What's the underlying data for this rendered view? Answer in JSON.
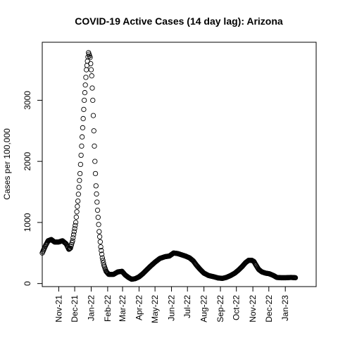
{
  "chart_data": {
    "type": "scatter",
    "title": "COVID-19 Active Cases (14 day lag): Arizona",
    "xlabel": "",
    "ylabel": "Cases per 100,000",
    "x_axis": {
      "type": "date",
      "range": [
        "2021-10-01",
        "2023-02-28"
      ],
      "ticks": [
        {
          "date": "2021-11-01",
          "label": "Nov-21"
        },
        {
          "date": "2021-12-01",
          "label": "Dec-21"
        },
        {
          "date": "2022-01-01",
          "label": "Jan-22"
        },
        {
          "date": "2022-02-01",
          "label": "Feb-22"
        },
        {
          "date": "2022-03-01",
          "label": "Mar-22"
        },
        {
          "date": "2022-04-01",
          "label": "Apr-22"
        },
        {
          "date": "2022-05-01",
          "label": "May-22"
        },
        {
          "date": "2022-06-01",
          "label": "Jun-22"
        },
        {
          "date": "2022-07-01",
          "label": "Jul-22"
        },
        {
          "date": "2022-08-01",
          "label": "Aug-22"
        },
        {
          "date": "2022-09-01",
          "label": "Sep-22"
        },
        {
          "date": "2022-10-01",
          "label": "Oct-22"
        },
        {
          "date": "2022-11-01",
          "label": "Nov-22"
        },
        {
          "date": "2022-12-01",
          "label": "Dec-22"
        },
        {
          "date": "2023-01-01",
          "label": "Jan-23"
        }
      ]
    },
    "y_axis": {
      "range": [
        -50,
        3950
      ],
      "ticks": [
        {
          "value": 0,
          "label": "0"
        },
        {
          "value": 1000,
          "label": "1000"
        },
        {
          "value": 2000,
          "label": "2000"
        },
        {
          "value": 3000,
          "label": "3000"
        }
      ]
    },
    "grid": false,
    "legend": "none",
    "marker": "open-circle",
    "series": [
      {
        "key_points": [
          [
            "2021-10-01",
            500
          ],
          [
            "2021-10-06",
            600
          ],
          [
            "2021-10-12",
            700
          ],
          [
            "2021-10-18",
            720
          ],
          [
            "2021-10-24",
            680
          ],
          [
            "2021-11-01",
            680
          ],
          [
            "2021-11-08",
            700
          ],
          [
            "2021-11-15",
            650
          ],
          [
            "2021-11-20",
            560
          ],
          [
            "2021-11-23",
            580
          ],
          [
            "2021-11-27",
            700
          ],
          [
            "2021-11-29",
            800
          ],
          [
            "2021-12-03",
            1000
          ],
          [
            "2021-12-07",
            1350
          ],
          [
            "2021-12-11",
            1800
          ],
          [
            "2021-12-15",
            2400
          ],
          [
            "2021-12-19",
            3000
          ],
          [
            "2021-12-23",
            3500
          ],
          [
            "2021-12-27",
            3780
          ],
          [
            "2021-12-30",
            3700
          ],
          [
            "2022-01-02",
            3400
          ],
          [
            "2022-01-04",
            3000
          ],
          [
            "2022-01-06",
            2500
          ],
          [
            "2022-01-08",
            2000
          ],
          [
            "2022-01-10",
            1600
          ],
          [
            "2022-01-13",
            1200
          ],
          [
            "2022-01-16",
            850
          ],
          [
            "2022-01-19",
            600
          ],
          [
            "2022-01-22",
            420
          ],
          [
            "2022-01-25",
            300
          ],
          [
            "2022-01-29",
            200
          ],
          [
            "2022-02-03",
            150
          ],
          [
            "2022-02-12",
            150
          ],
          [
            "2022-02-20",
            190
          ],
          [
            "2022-02-28",
            200
          ],
          [
            "2022-03-06",
            140
          ],
          [
            "2022-03-12",
            100
          ],
          [
            "2022-03-18",
            70
          ],
          [
            "2022-03-25",
            80
          ],
          [
            "2022-04-01",
            110
          ],
          [
            "2022-04-08",
            160
          ],
          [
            "2022-04-15",
            220
          ],
          [
            "2022-04-22",
            280
          ],
          [
            "2022-05-01",
            350
          ],
          [
            "2022-05-10",
            410
          ],
          [
            "2022-05-20",
            440
          ],
          [
            "2022-05-28",
            450
          ],
          [
            "2022-06-05",
            500
          ],
          [
            "2022-06-13",
            490
          ],
          [
            "2022-06-20",
            470
          ],
          [
            "2022-06-27",
            450
          ],
          [
            "2022-07-05",
            420
          ],
          [
            "2022-07-12",
            370
          ],
          [
            "2022-07-18",
            300
          ],
          [
            "2022-07-25",
            230
          ],
          [
            "2022-08-01",
            170
          ],
          [
            "2022-08-10",
            130
          ],
          [
            "2022-08-20",
            110
          ],
          [
            "2022-08-28",
            90
          ],
          [
            "2022-09-05",
            85
          ],
          [
            "2022-09-12",
            100
          ],
          [
            "2022-09-20",
            130
          ],
          [
            "2022-09-28",
            170
          ],
          [
            "2022-10-05",
            220
          ],
          [
            "2022-10-12",
            280
          ],
          [
            "2022-10-18",
            340
          ],
          [
            "2022-10-24",
            380
          ],
          [
            "2022-10-30",
            380
          ],
          [
            "2022-11-03",
            360
          ],
          [
            "2022-11-07",
            300
          ],
          [
            "2022-11-12",
            230
          ],
          [
            "2022-11-18",
            190
          ],
          [
            "2022-11-25",
            170
          ],
          [
            "2022-12-02",
            160
          ],
          [
            "2022-12-10",
            130
          ],
          [
            "2022-12-16",
            100
          ],
          [
            "2022-12-24",
            95
          ],
          [
            "2023-01-02",
            95
          ],
          [
            "2023-01-12",
            100
          ],
          [
            "2023-01-20",
            95
          ]
        ]
      }
    ]
  }
}
